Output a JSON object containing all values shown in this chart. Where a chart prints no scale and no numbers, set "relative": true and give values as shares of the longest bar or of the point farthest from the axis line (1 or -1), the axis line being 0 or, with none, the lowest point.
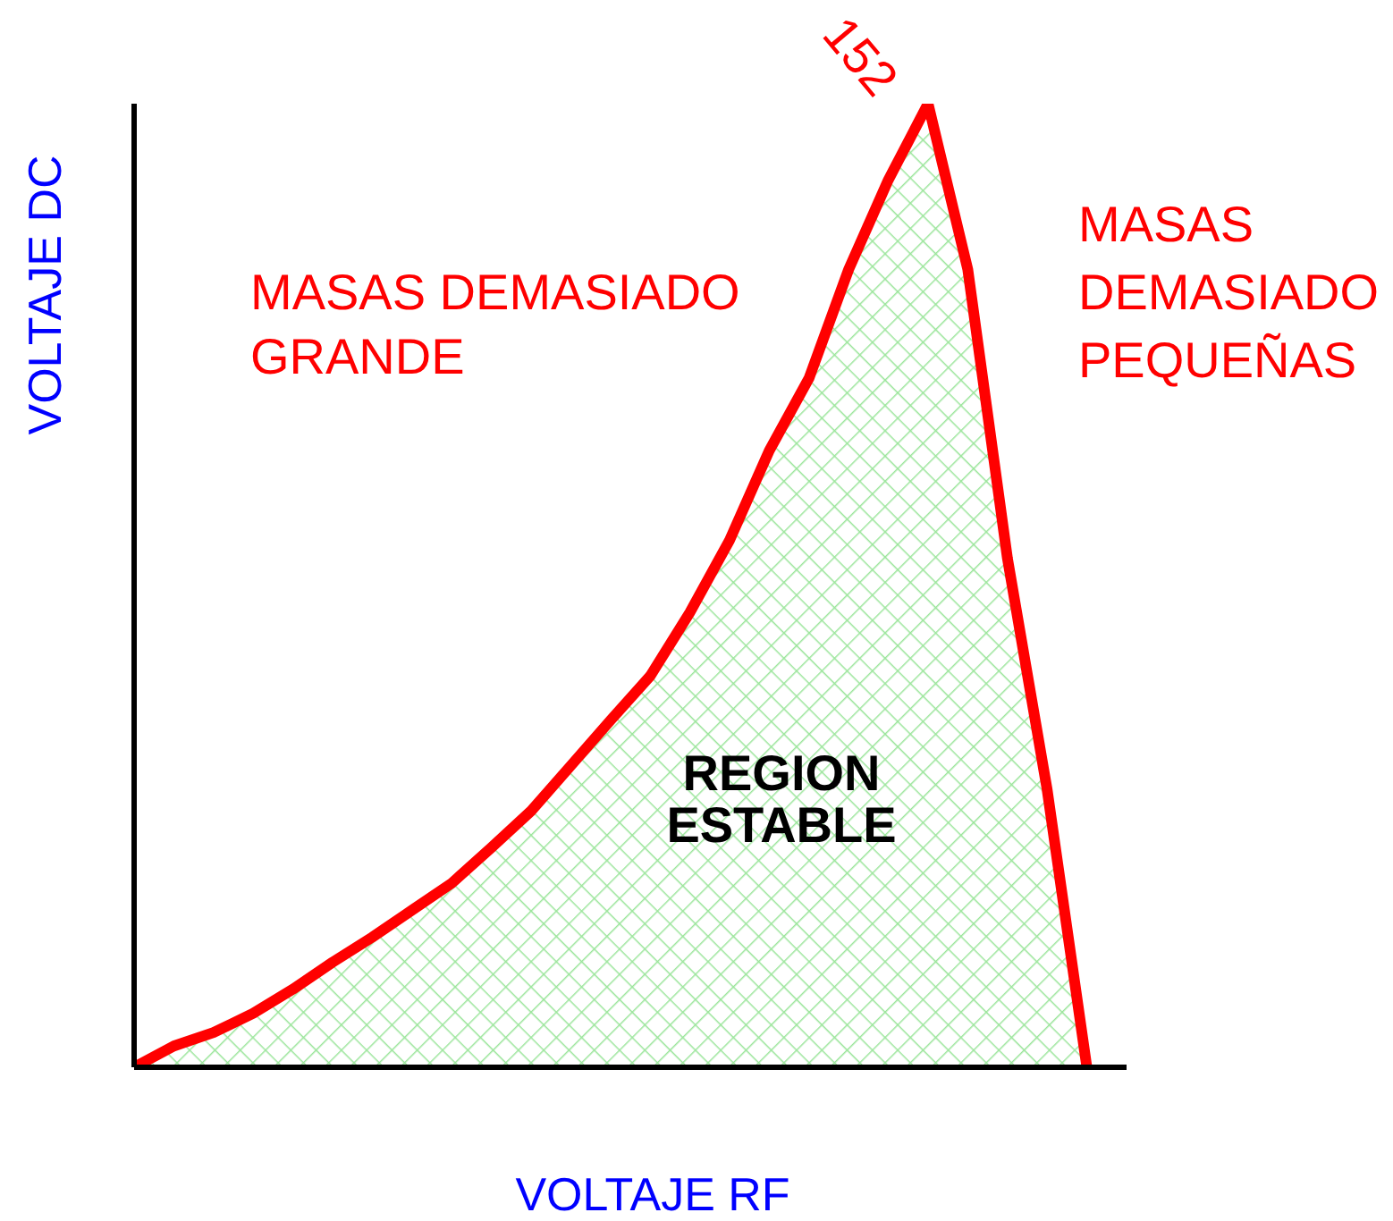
{
  "chart_data": {
    "type": "area",
    "relative": true,
    "xlabel": "VOLTAJE RF",
    "ylabel": "VOLTAJE DC",
    "categories": [
      null,
      null,
      null,
      null,
      null,
      null,
      null,
      null,
      null,
      null,
      null,
      null,
      null,
      null,
      null,
      null,
      null,
      null,
      null,
      null,
      null,
      null,
      null,
      null,
      null,
      null
    ],
    "series": [
      {
        "color": "#ff0000",
        "values": [
          0,
          0.022,
          0.036,
          0.056,
          0.081,
          0.109,
          0.135,
          0.163,
          0.191,
          0.228,
          0.266,
          0.313,
          0.36,
          0.406,
          0.472,
          0.547,
          0.64,
          0.715,
          0.828,
          0.921,
          1,
          0.828,
          0.528,
          0.288,
          0,
          null
        ]
      }
    ],
    "annotations": [
      "MASAS DEMASIADO GRANDE",
      "MASAS DEMASIADO PEQUEÑAS",
      "REGION ESTABLE",
      "152"
    ],
    "grid": false,
    "legend": false
  }
}
